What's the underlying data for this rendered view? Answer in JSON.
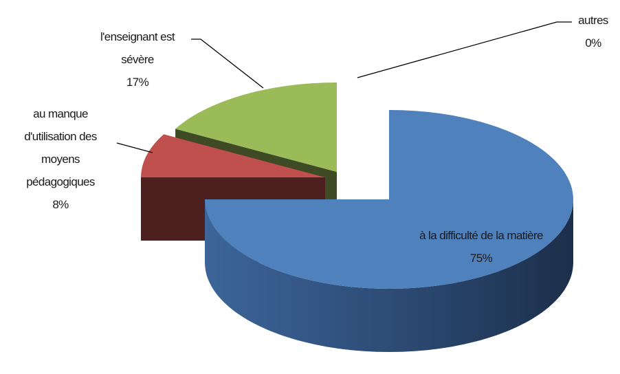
{
  "chart_data": {
    "type": "pie3d",
    "categories": [
      "à la difficulté de la matière",
      "au manque d'utilisation des moyens pédagogiques",
      "l'enseignant est sévère",
      "autres"
    ],
    "values": [
      75,
      8,
      17,
      0
    ],
    "value_labels": [
      "75%",
      "8%",
      "17%",
      "0%"
    ],
    "colors": [
      "#4f81bd",
      "#c0504d",
      "#9bbb59",
      "#8064a2"
    ]
  }
}
